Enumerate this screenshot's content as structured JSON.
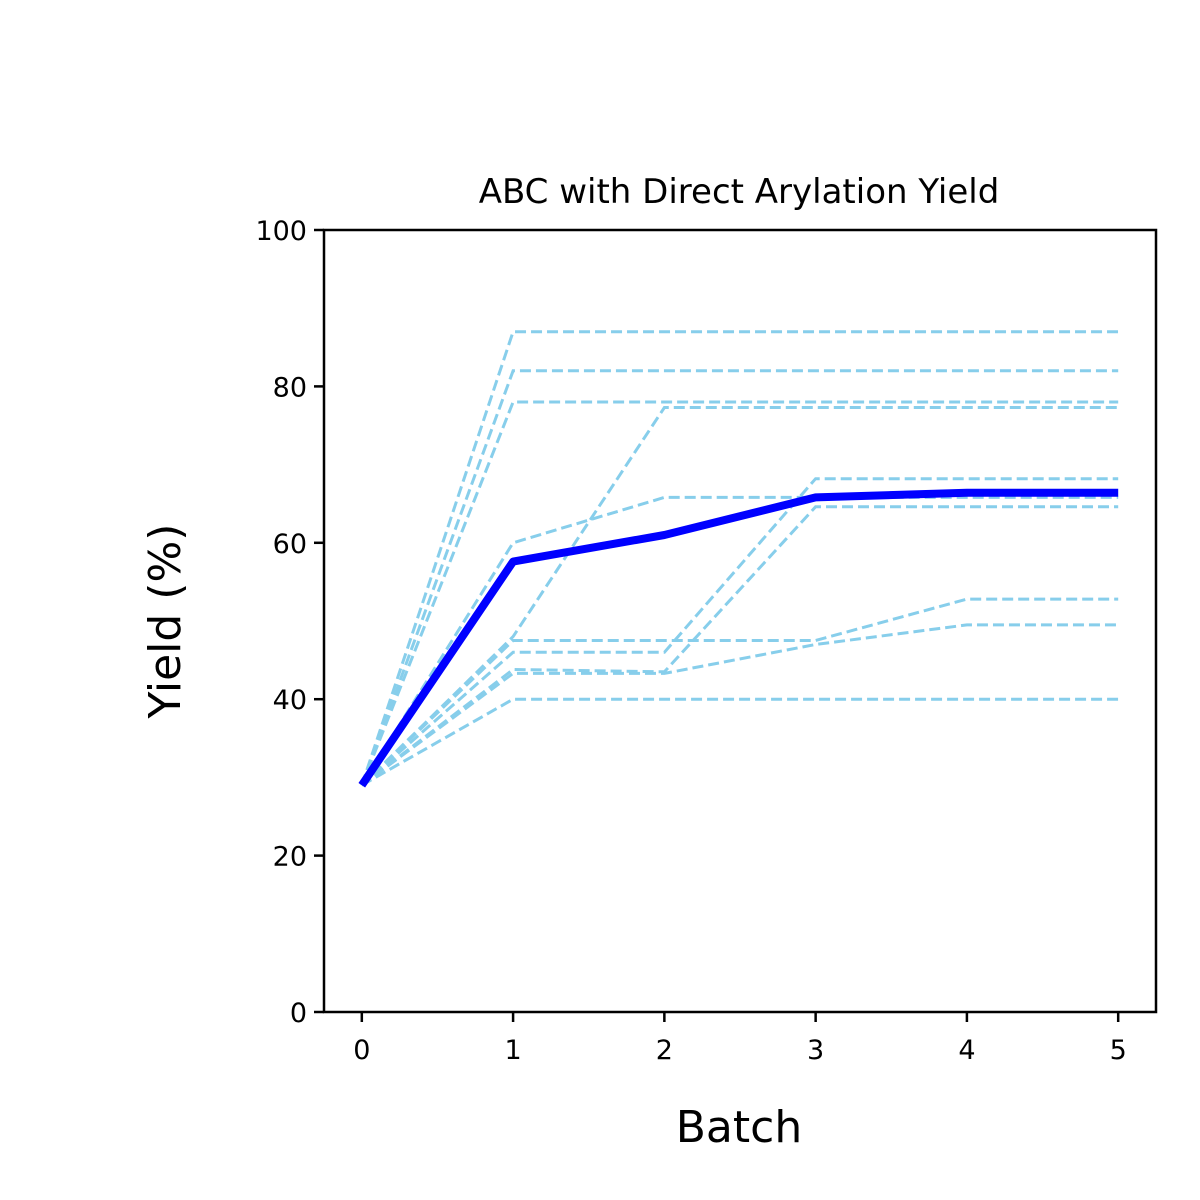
{
  "chart_data": {
    "type": "line",
    "title": "ABC with Direct Arylation Yield",
    "xlabel": "Batch",
    "ylabel": "Yield (%)",
    "xlim": [
      -0.25,
      5.25
    ],
    "ylim": [
      0,
      100
    ],
    "xticks": [
      0,
      1,
      2,
      3,
      4,
      5
    ],
    "yticks": [
      0,
      20,
      40,
      60,
      80,
      100
    ],
    "grid": false,
    "colors": {
      "runs": "#87ceeb",
      "mean": "#0000ff",
      "axes": "#000000"
    },
    "x": [
      0,
      1,
      2,
      3,
      4,
      5
    ],
    "runs": [
      {
        "values": [
          29,
          87,
          87,
          87,
          87,
          87
        ]
      },
      {
        "values": [
          29,
          82,
          82,
          82,
          82,
          82
        ]
      },
      {
        "values": [
          29,
          78,
          78,
          78,
          78,
          78
        ]
      },
      {
        "values": [
          29,
          48,
          77.3,
          77.3,
          77.3,
          77.3
        ]
      },
      {
        "values": [
          29,
          60,
          65.8,
          65.8,
          65.8,
          65.8
        ]
      },
      {
        "values": [
          29,
          47.5,
          47.5,
          47.5,
          52.8,
          52.8
        ]
      },
      {
        "values": [
          29,
          46,
          46,
          68.2,
          68.2,
          68.2
        ]
      },
      {
        "values": [
          29,
          43.8,
          43.5,
          64.6,
          64.6,
          64.6
        ]
      },
      {
        "values": [
          29,
          43.3,
          43.3,
          47,
          49.5,
          49.5
        ]
      },
      {
        "values": [
          29,
          40,
          40,
          40,
          40,
          40
        ]
      }
    ],
    "mean": {
      "values": [
        29,
        57.6,
        61,
        65.8,
        66.4,
        66.4
      ]
    }
  }
}
